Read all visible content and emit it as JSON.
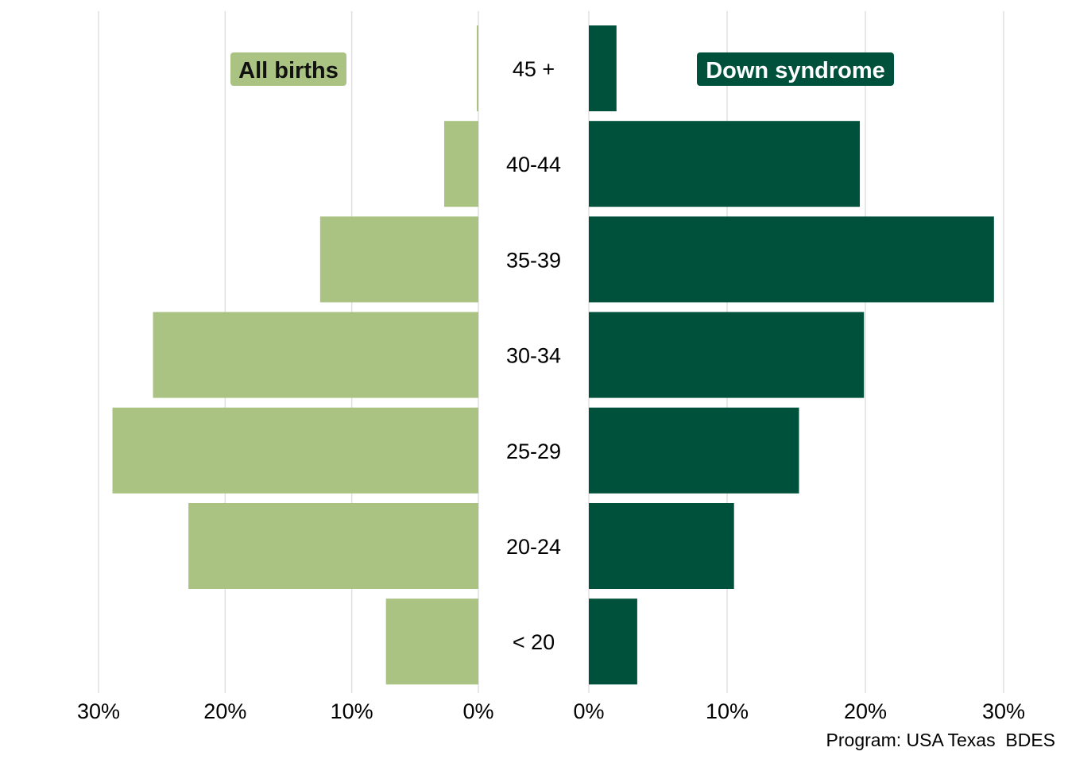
{
  "chart_data": {
    "type": "bar",
    "orientation": "horizontal",
    "layout": "butterfly",
    "categories": [
      "45 +",
      "40-44",
      "35-39",
      "30-34",
      "25-29",
      "20-24",
      "< 20"
    ],
    "series": [
      {
        "name": "All births",
        "side": "left",
        "color": "#aac382",
        "label_color": "#111111",
        "values": [
          0.1,
          2.7,
          12.5,
          25.7,
          28.9,
          22.9,
          7.3
        ]
      },
      {
        "name": "Down syndrome",
        "side": "right",
        "color": "#00513b",
        "label_color": "#ffffff",
        "values": [
          2.0,
          19.6,
          29.3,
          19.9,
          15.2,
          10.5,
          3.5
        ]
      }
    ],
    "xlim": [
      0,
      30
    ],
    "left_ticks": [
      "30%",
      "20%",
      "10%",
      "0%"
    ],
    "right_ticks": [
      "0%",
      "10%",
      "20%",
      "30%"
    ],
    "tick_values": [
      0,
      10,
      20,
      30
    ],
    "grid": "vertical",
    "legend": "inside-top",
    "caption": "Program: USA Texas  BDES"
  }
}
